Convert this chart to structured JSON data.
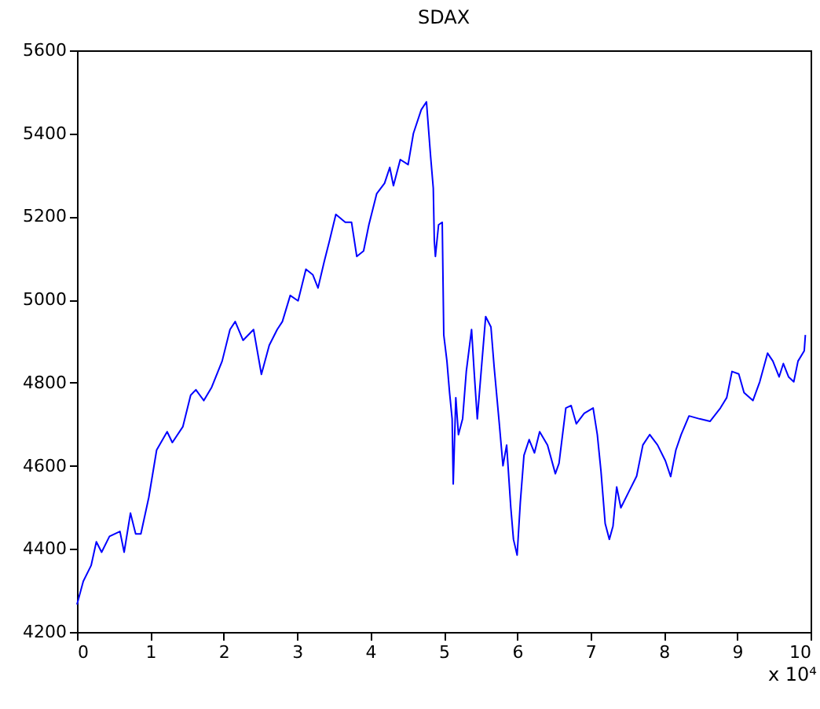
{
  "chart_data": {
    "type": "line",
    "title": "SDAX",
    "x": [
      0,
      0.086,
      0.193,
      0.264,
      0.336,
      0.443,
      0.586,
      0.643,
      0.729,
      0.8,
      0.871,
      0.979,
      1.086,
      1.229,
      1.3,
      1.443,
      1.55,
      1.621,
      1.729,
      1.836,
      1.979,
      2.086,
      2.157,
      2.264,
      2.407,
      2.514,
      2.621,
      2.729,
      2.8,
      2.907,
      3.014,
      3.121,
      3.214,
      3.286,
      3.371,
      3.443,
      3.529,
      3.657,
      3.743,
      3.814,
      3.907,
      3.979,
      4.086,
      4.193,
      4.264,
      4.314,
      4.407,
      4.514,
      4.586,
      4.693,
      4.764,
      4.821,
      4.857,
      4.871,
      4.886,
      4.929,
      4.979,
      5.0,
      5.043,
      5.079,
      5.114,
      5.129,
      5.164,
      5.2,
      5.257,
      5.307,
      5.379,
      5.414,
      5.457,
      5.521,
      5.571,
      5.643,
      5.686,
      5.757,
      5.807,
      5.857,
      5.914,
      5.95,
      6.0,
      6.043,
      6.093,
      6.164,
      6.236,
      6.307,
      6.414,
      6.521,
      6.571,
      6.664,
      6.736,
      6.807,
      6.914,
      7.036,
      7.093,
      7.143,
      7.2,
      7.257,
      7.307,
      7.357,
      7.414,
      7.521,
      7.629,
      7.714,
      7.807,
      7.914,
      8.021,
      8.093,
      8.164,
      8.236,
      8.343,
      8.486,
      8.629,
      8.771,
      8.857,
      8.929,
      9.021,
      9.093,
      9.214,
      9.307,
      9.414,
      9.486,
      9.571,
      9.629,
      9.7,
      9.771,
      9.829,
      9.914,
      9.929
    ],
    "series": [
      {
        "color": "#0000ff",
        "values": [
          4266,
          4322,
          4360,
          4417,
          4392,
          4430,
          4442,
          4392,
          4486,
          4436,
          4436,
          4524,
          4638,
          4682,
          4656,
          4694,
          4770,
          4783,
          4757,
          4789,
          4852,
          4928,
          4947,
          4902,
          4928,
          4820,
          4890,
          4928,
          4947,
          5010,
          4997,
          5073,
          5060,
          5028,
          5092,
          5142,
          5205,
          5186,
          5186,
          5104,
          5117,
          5180,
          5255,
          5280,
          5318,
          5274,
          5337,
          5325,
          5400,
          5457,
          5476,
          5344,
          5268,
          5142,
          5104,
          5180,
          5186,
          4915,
          4852,
          4776,
          4713,
          4556,
          4764,
          4675,
          4713,
          4827,
          4928,
          4827,
          4713,
          4852,
          4959,
          4934,
          4839,
          4701,
          4600,
          4650,
          4499,
          4423,
          4385,
          4511,
          4625,
          4663,
          4631,
          4682,
          4650,
          4581,
          4606,
          4739,
          4745,
          4701,
          4726,
          4739,
          4675,
          4587,
          4461,
          4423,
          4455,
          4549,
          4499,
          4537,
          4575,
          4650,
          4675,
          4650,
          4612,
          4574,
          4638,
          4675,
          4720,
          4713,
          4707,
          4739,
          4764,
          4827,
          4821,
          4776,
          4757,
          4802,
          4871,
          4852,
          4814,
          4846,
          4814,
          4802,
          4852,
          4877,
          4915
        ]
      }
    ],
    "xlim": [
      0,
      10
    ],
    "xticks": [
      0,
      1,
      2,
      3,
      4,
      5,
      6,
      7,
      8,
      9,
      10
    ],
    "ylim": [
      4200,
      5600
    ],
    "yticks": [
      4200,
      4400,
      4600,
      4800,
      5000,
      5200,
      5400,
      5600
    ],
    "annotations": [
      "x 10⁴"
    ],
    "grid": false,
    "marker": "none",
    "line_style": "solid"
  }
}
